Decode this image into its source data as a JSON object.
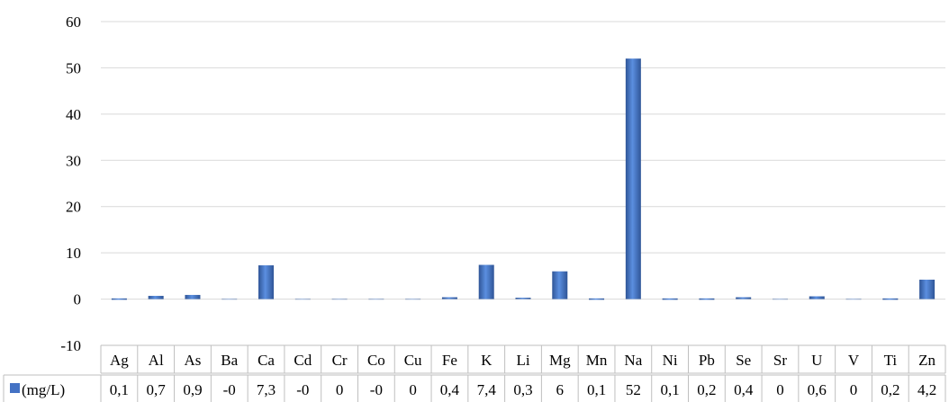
{
  "chart_data": {
    "type": "bar",
    "categories": [
      "Ag",
      "Al",
      "As",
      "Ba",
      "Ca",
      "Cd",
      "Cr",
      "Co",
      "Cu",
      "Fe",
      "K",
      "Li",
      "Mg",
      "Mn",
      "Na",
      "Ni",
      "Pb",
      "Se",
      "Sr",
      "U",
      "V",
      "Ti",
      "Zn"
    ],
    "series": [
      {
        "name": "(mg/L)",
        "values": [
          0.1,
          0.7,
          0.9,
          -0.02,
          7.3,
          -0.02,
          0.02,
          -0.02,
          0.02,
          0.4,
          7.4,
          0.3,
          6,
          0.1,
          52,
          0.1,
          0.2,
          0.4,
          0.02,
          0.6,
          0.02,
          0.2,
          4.2
        ],
        "labels": [
          "0,1",
          "0,7",
          "0,9",
          "-0",
          "7,3",
          "-0",
          "0",
          "-0",
          "0",
          "0,4",
          "7,4",
          "0,3",
          "6",
          "0,1",
          "52",
          "0,1",
          "0,2",
          "0,4",
          "0",
          "0,6",
          "0",
          "0,2",
          "4,2"
        ],
        "color": "#4472c4"
      }
    ],
    "ylim": [
      -10,
      60
    ],
    "yticks": [
      "-10",
      "0",
      "10",
      "20",
      "30",
      "40",
      "50",
      "60"
    ],
    "grid": true,
    "data_table": true,
    "title": "",
    "xlabel": "",
    "ylabel": ""
  }
}
